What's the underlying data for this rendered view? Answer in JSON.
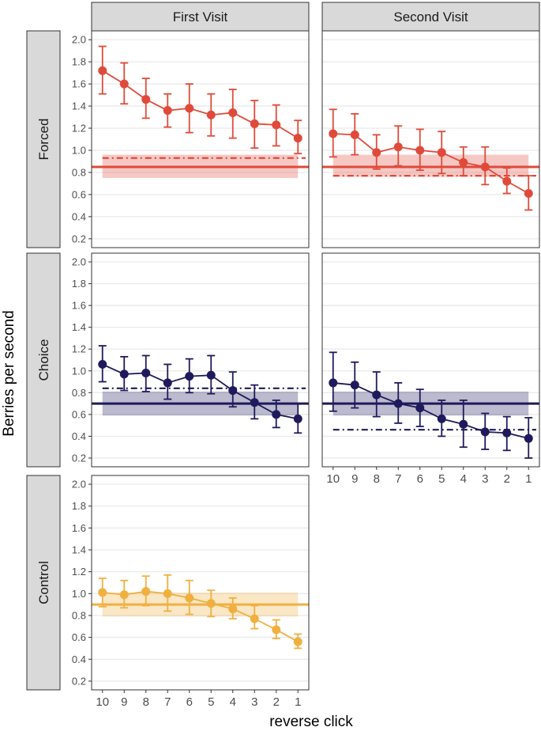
{
  "chart_data": {
    "type": "line",
    "facet_columns": [
      "First Visit",
      "Second Visit"
    ],
    "facet_rows": [
      "Forced",
      "Choice",
      "Control"
    ],
    "xlabel": "reverse click",
    "ylabel": "Berries per second",
    "x_categories": [
      "10",
      "9",
      "8",
      "7",
      "6",
      "5",
      "4",
      "3",
      "2",
      "1"
    ],
    "y_ticks": [
      0.2,
      0.4,
      0.6,
      0.8,
      1.0,
      1.2,
      1.4,
      1.6,
      1.8,
      2.0
    ],
    "y_tick_labels": [
      "0.2",
      "0.4",
      "0.6",
      "0.8",
      "1.0",
      "1.2",
      "1.4",
      "1.6",
      "1.8",
      "2.0"
    ],
    "ylim": [
      0.12,
      2.08
    ],
    "grid": true,
    "colors": {
      "Forced": "#e04a3a",
      "Choice": "#1f1a5c",
      "Control": "#f0b040"
    },
    "panels": [
      {
        "row": "Forced",
        "col": "First Visit",
        "values": [
          1.72,
          1.6,
          1.46,
          1.36,
          1.38,
          1.32,
          1.34,
          1.24,
          1.23,
          1.11
        ],
        "err_low": [
          1.51,
          1.42,
          1.29,
          1.21,
          1.16,
          1.13,
          1.11,
          1.02,
          1.04,
          0.97
        ],
        "err_high": [
          1.94,
          1.79,
          1.65,
          1.51,
          1.6,
          1.51,
          1.55,
          1.45,
          1.41,
          1.27
        ],
        "mean_line": 0.85,
        "band": [
          0.75,
          0.96
        ],
        "dashdot_line": 0.93
      },
      {
        "row": "Forced",
        "col": "Second Visit",
        "values": [
          1.15,
          1.14,
          0.98,
          1.03,
          1.0,
          0.98,
          0.89,
          0.85,
          0.72,
          0.61
        ],
        "err_low": [
          0.94,
          0.96,
          0.83,
          0.86,
          0.82,
          0.79,
          0.77,
          0.69,
          0.61,
          0.46
        ],
        "err_high": [
          1.37,
          1.33,
          1.14,
          1.22,
          1.19,
          1.17,
          1.03,
          1.03,
          0.84,
          0.77
        ],
        "mean_line": 0.85,
        "band": [
          0.76,
          0.96
        ],
        "dashdot_line": 0.77
      },
      {
        "row": "Choice",
        "col": "First Visit",
        "values": [
          1.06,
          0.97,
          0.98,
          0.89,
          0.95,
          0.96,
          0.82,
          0.71,
          0.6,
          0.56
        ],
        "err_low": [
          0.9,
          0.82,
          0.81,
          0.74,
          0.8,
          0.79,
          0.67,
          0.56,
          0.48,
          0.43
        ],
        "err_high": [
          1.23,
          1.13,
          1.14,
          1.06,
          1.11,
          1.14,
          0.99,
          0.87,
          0.73,
          0.7
        ],
        "mean_line": 0.7,
        "band": [
          0.59,
          0.81
        ],
        "dashdot_line": 0.84
      },
      {
        "row": "Choice",
        "col": "Second Visit",
        "values": [
          0.89,
          0.87,
          0.78,
          0.7,
          0.66,
          0.56,
          0.51,
          0.44,
          0.43,
          0.38
        ],
        "err_low": [
          0.63,
          0.66,
          0.58,
          0.52,
          0.49,
          0.4,
          0.3,
          0.28,
          0.27,
          0.2
        ],
        "err_high": [
          1.17,
          1.08,
          0.99,
          0.89,
          0.83,
          0.73,
          0.73,
          0.61,
          0.58,
          0.57
        ],
        "mean_line": 0.7,
        "band": [
          0.59,
          0.81
        ],
        "dashdot_line": 0.46
      },
      {
        "row": "Control",
        "col": "First Visit",
        "values": [
          1.01,
          0.99,
          1.02,
          1.0,
          0.96,
          0.91,
          0.86,
          0.77,
          0.67,
          0.56
        ],
        "err_low": [
          0.88,
          0.87,
          0.89,
          0.84,
          0.81,
          0.79,
          0.77,
          0.68,
          0.59,
          0.5
        ],
        "err_high": [
          1.14,
          1.12,
          1.16,
          1.17,
          1.12,
          1.03,
          0.96,
          0.89,
          0.76,
          0.63
        ],
        "mean_line": 0.9,
        "band": [
          0.79,
          1.01
        ],
        "dashdot_line": null
      }
    ]
  }
}
